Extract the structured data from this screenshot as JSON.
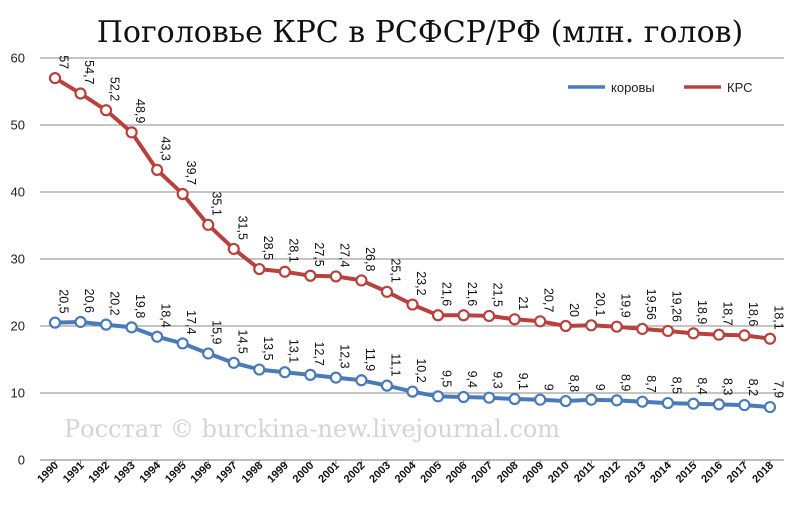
{
  "chart_data": {
    "type": "line",
    "title": "Поголовье КРС в РСФСР/РФ (млн. голов)",
    "watermark": "Росстат © burckina-new.livejournal.com",
    "xlabel": "",
    "ylabel": "",
    "ylim": [
      0,
      60
    ],
    "yticks": [
      "0",
      "10",
      "20",
      "30",
      "40",
      "50",
      "60"
    ],
    "grid": true,
    "legend": "top-right",
    "categories": [
      "1990",
      "1991",
      "1992",
      "1993",
      "1994",
      "1995",
      "1996",
      "1997",
      "1998",
      "1999",
      "2000",
      "2001",
      "2002",
      "2003",
      "2004",
      "2005",
      "2006",
      "2007",
      "2008",
      "2009",
      "2010",
      "2011",
      "2012",
      "2013",
      "2014",
      "2015",
      "2016",
      "2017",
      "2018"
    ],
    "series": [
      {
        "name": "коровы",
        "color": "#4a7ab8",
        "values": [
          20.5,
          20.6,
          20.2,
          19.8,
          18.4,
          17.4,
          15.9,
          14.5,
          13.5,
          13.1,
          12.7,
          12.3,
          11.9,
          11.1,
          10.2,
          9.5,
          9.4,
          9.3,
          9.1,
          9,
          8.8,
          9,
          8.9,
          8.7,
          8.5,
          8.4,
          8.3,
          8.2,
          7.9
        ],
        "labels": [
          "20,5",
          "20,6",
          "20,2",
          "19,8",
          "18,4",
          "17,4",
          "15,9",
          "14,5",
          "13,5",
          "13,1",
          "12,7",
          "12,3",
          "11,9",
          "11,1",
          "10,2",
          "9,5",
          "9,4",
          "9,3",
          "9,1",
          "9",
          "8,8",
          "9",
          "8,9",
          "8,7",
          "8,5",
          "8,4",
          "8,3",
          "8,2",
          "7,9"
        ]
      },
      {
        "name": "КРС",
        "color": "#b8413d",
        "values": [
          57,
          54.7,
          52.2,
          48.9,
          43.3,
          39.7,
          35.1,
          31.5,
          28.5,
          28.1,
          27.5,
          27.4,
          26.8,
          25.1,
          23.2,
          21.6,
          21.6,
          21.5,
          21,
          20.7,
          20,
          20.1,
          19.9,
          19.56,
          19.26,
          18.9,
          18.7,
          18.6,
          18.1
        ],
        "labels": [
          "57",
          "54,7",
          "52,2",
          "48,9",
          "43,3",
          "39,7",
          "35,1",
          "31,5",
          "28,5",
          "28,1",
          "27,5",
          "27,4",
          "26,8",
          "25,1",
          "23,2",
          "21,6",
          "21,6",
          "21,5",
          "21",
          "20,7",
          "20",
          "20,1",
          "19,9",
          "19,56",
          "19,26",
          "18,9",
          "18,7",
          "18,6",
          "18,1"
        ]
      }
    ]
  }
}
